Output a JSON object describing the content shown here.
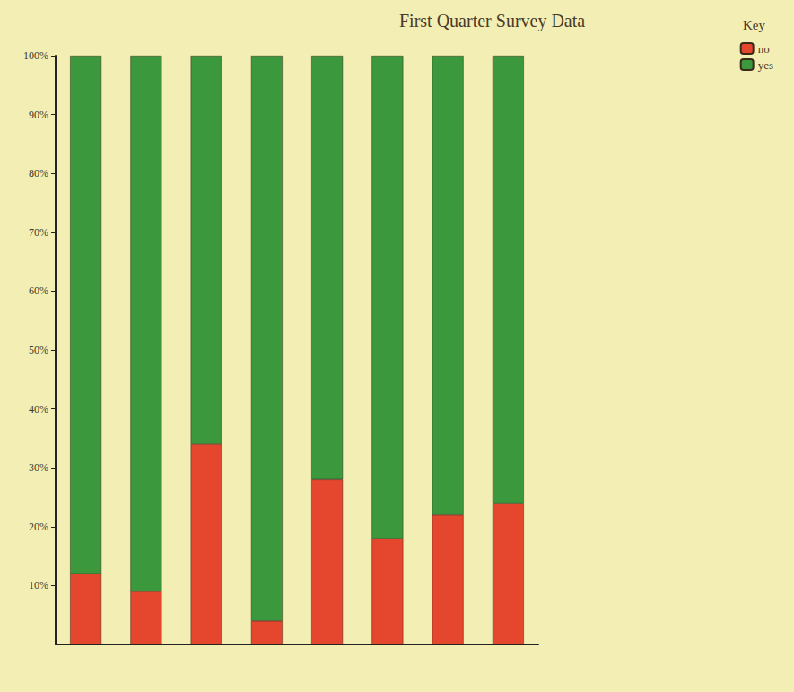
{
  "chart_data": {
    "type": "bar",
    "title": "First Quarter Survey Data",
    "categories": [
      null,
      null,
      null,
      null,
      null,
      null,
      null,
      null
    ],
    "series": [
      {
        "name": "no",
        "color": "#e4462e",
        "values": [
          12,
          9,
          34,
          4,
          28,
          18,
          22,
          24
        ]
      },
      {
        "name": "yes",
        "color": "#3b983c",
        "values": [
          88,
          91,
          66,
          96,
          72,
          82,
          78,
          76
        ]
      }
    ],
    "stacked": true,
    "ylim": [
      0,
      100
    ],
    "yticks": [
      {
        "value": 10,
        "label": "10%"
      },
      {
        "value": 20,
        "label": "20%"
      },
      {
        "value": 30,
        "label": "30%"
      },
      {
        "value": 40,
        "label": "40%"
      },
      {
        "value": 50,
        "label": "50%"
      },
      {
        "value": 60,
        "label": "60%"
      },
      {
        "value": 70,
        "label": "70%"
      },
      {
        "value": 80,
        "label": "80%"
      },
      {
        "value": 90,
        "label": "90%"
      },
      {
        "value": 100,
        "label": "100%"
      }
    ],
    "grid": false,
    "legend": "top-right",
    "legend_title": "Key"
  }
}
